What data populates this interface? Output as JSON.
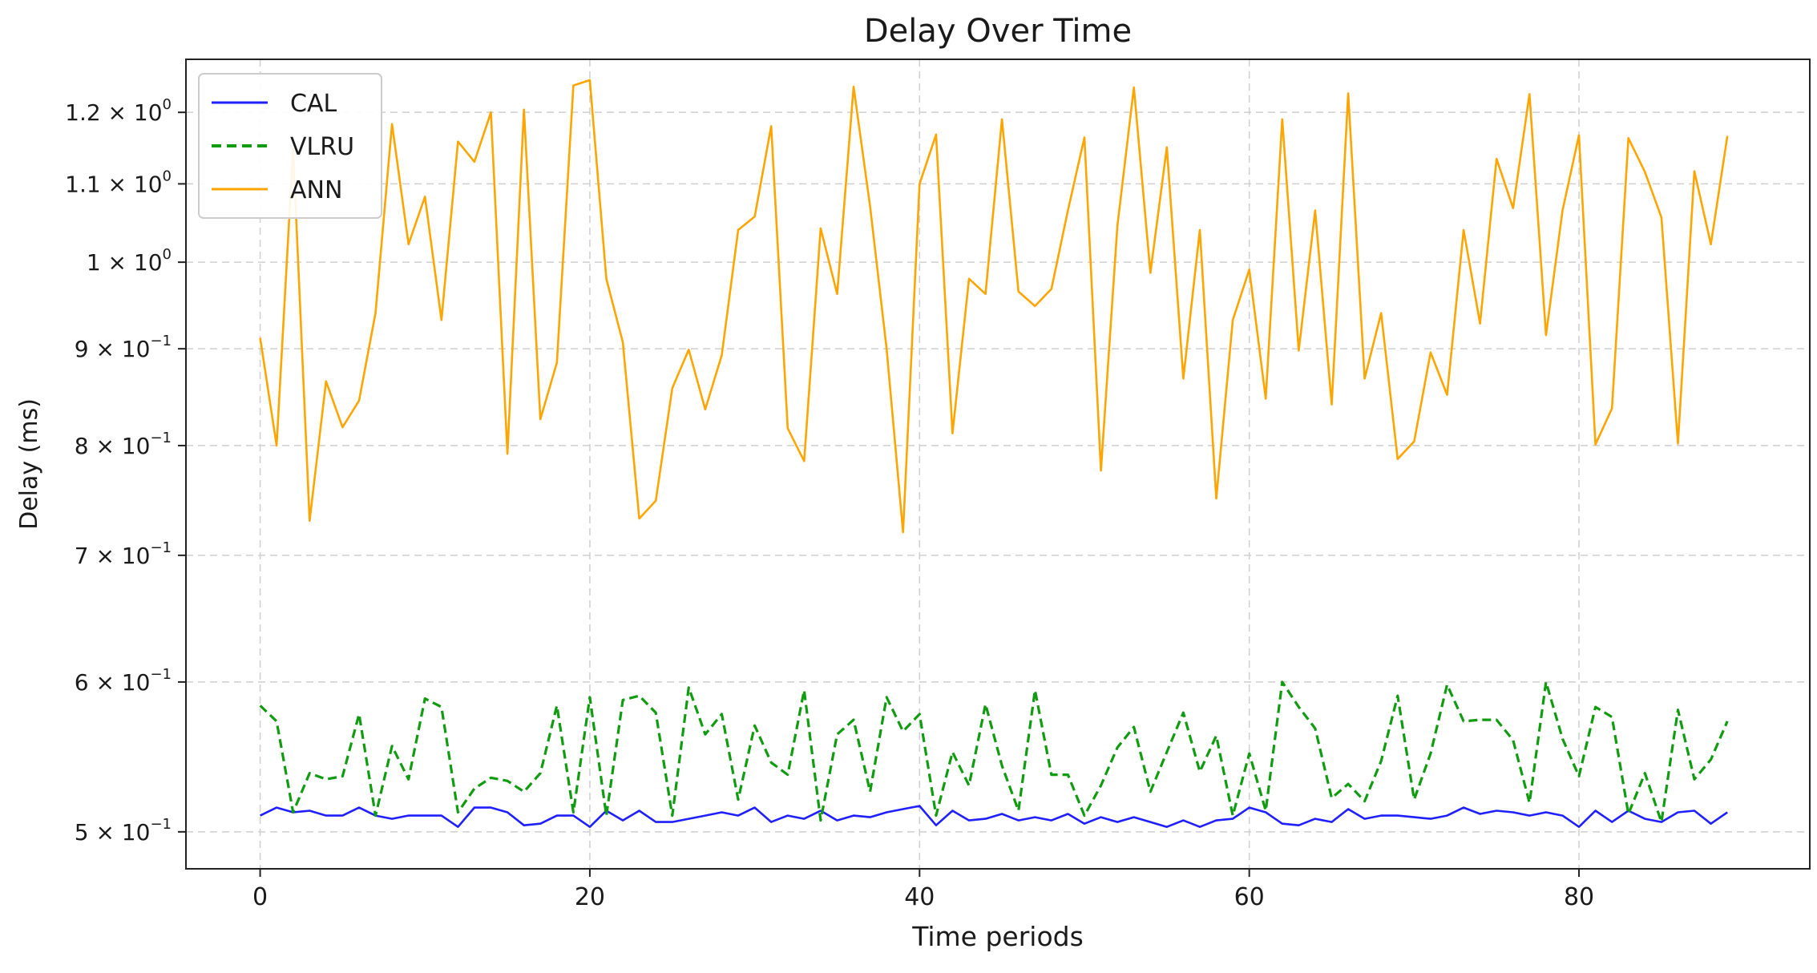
{
  "chart_data": {
    "type": "line",
    "title": "Delay Over Time",
    "xlabel": "Time periods",
    "ylabel": "Delay (ms)",
    "y_scale": "log",
    "xlim": [
      -4.5,
      94
    ],
    "ylim": [
      0.478,
      1.28
    ],
    "grid": true,
    "legend_position": "upper-left",
    "x_ticks": [
      0,
      20,
      40,
      60,
      80
    ],
    "x_tick_labels": [
      "0",
      "20",
      "40",
      "60",
      "80"
    ],
    "y_ticks": [
      {
        "value": 0.5,
        "mant": "5 × 10",
        "exp": "−1"
      },
      {
        "value": 0.6,
        "mant": "6 × 10",
        "exp": "−1"
      },
      {
        "value": 0.7,
        "mant": "7 × 10",
        "exp": "−1"
      },
      {
        "value": 0.8,
        "mant": "8 × 10",
        "exp": "−1"
      },
      {
        "value": 0.9,
        "mant": "9 × 10",
        "exp": "−1"
      },
      {
        "value": 1.0,
        "mant": "1 × 10",
        "exp": "0"
      },
      {
        "value": 1.1,
        "mant": "1.1 × 10",
        "exp": "0"
      },
      {
        "value": 1.2,
        "mant": "1.2 × 10",
        "exp": "0"
      }
    ],
    "x": [
      0,
      1,
      2,
      3,
      4,
      5,
      6,
      7,
      8,
      9,
      10,
      11,
      12,
      13,
      14,
      15,
      16,
      17,
      18,
      19,
      20,
      21,
      22,
      23,
      24,
      25,
      26,
      27,
      28,
      29,
      30,
      31,
      32,
      33,
      34,
      35,
      36,
      37,
      38,
      39,
      40,
      41,
      42,
      43,
      44,
      45,
      46,
      47,
      48,
      49,
      50,
      51,
      52,
      53,
      54,
      55,
      56,
      57,
      58,
      59,
      60,
      61,
      62,
      63,
      64,
      65,
      66,
      67,
      68,
      69,
      70,
      71,
      72,
      73,
      74,
      75,
      76,
      77,
      78,
      79,
      80,
      81,
      82,
      83,
      84,
      85,
      86,
      87,
      88,
      89
    ],
    "series": [
      {
        "name": "CAL",
        "color": "#1f1fff",
        "style": "solid",
        "values": [
          0.51,
          0.515,
          0.512,
          0.513,
          0.51,
          0.51,
          0.515,
          0.51,
          0.508,
          0.51,
          0.51,
          0.51,
          0.503,
          0.515,
          0.515,
          0.512,
          0.504,
          0.505,
          0.51,
          0.51,
          0.503,
          0.513,
          0.507,
          0.513,
          0.506,
          0.506,
          0.508,
          0.51,
          0.512,
          0.51,
          0.515,
          0.506,
          0.51,
          0.508,
          0.513,
          0.507,
          0.51,
          0.509,
          0.512,
          0.514,
          0.516,
          0.504,
          0.513,
          0.507,
          0.508,
          0.511,
          0.507,
          0.509,
          0.507,
          0.511,
          0.505,
          0.509,
          0.506,
          0.509,
          0.506,
          0.503,
          0.507,
          0.503,
          0.507,
          0.508,
          0.515,
          0.512,
          0.505,
          0.504,
          0.508,
          0.506,
          0.514,
          0.508,
          0.51,
          0.51,
          0.509,
          0.508,
          0.51,
          0.515,
          0.511,
          0.513,
          0.512,
          0.51,
          0.512,
          0.51,
          0.503,
          0.513,
          0.506,
          0.513,
          0.508,
          0.506,
          0.512,
          0.513,
          0.505,
          0.512
        ]
      },
      {
        "name": "VLRU",
        "color": "#119b11",
        "style": "dashed",
        "values": [
          0.583,
          0.572,
          0.512,
          0.537,
          0.533,
          0.535,
          0.577,
          0.51,
          0.555,
          0.533,
          0.588,
          0.582,
          0.512,
          0.527,
          0.534,
          0.532,
          0.525,
          0.537,
          0.583,
          0.512,
          0.589,
          0.51,
          0.587,
          0.59,
          0.578,
          0.51,
          0.596,
          0.563,
          0.577,
          0.52,
          0.569,
          0.544,
          0.536,
          0.594,
          0.507,
          0.563,
          0.573,
          0.525,
          0.589,
          0.565,
          0.577,
          0.51,
          0.551,
          0.529,
          0.584,
          0.542,
          0.513,
          0.594,
          0.536,
          0.536,
          0.51,
          0.529,
          0.554,
          0.568,
          0.525,
          0.551,
          0.578,
          0.538,
          0.562,
          0.51,
          0.55,
          0.513,
          0.6,
          0.582,
          0.567,
          0.521,
          0.53,
          0.519,
          0.545,
          0.59,
          0.52,
          0.55,
          0.598,
          0.572,
          0.573,
          0.573,
          0.559,
          0.518,
          0.6,
          0.56,
          0.535,
          0.582,
          0.575,
          0.511,
          0.537,
          0.506,
          0.58,
          0.533,
          0.546,
          0.572
        ]
      },
      {
        "name": "ANN",
        "color": "#ffa500",
        "style": "solid",
        "values": [
          0.912,
          0.8,
          1.148,
          0.73,
          0.865,
          0.818,
          0.845,
          0.94,
          1.183,
          1.022,
          1.083,
          0.932,
          1.158,
          1.13,
          1.2,
          0.792,
          1.204,
          0.826,
          0.885,
          1.24,
          1.248,
          0.98,
          0.907,
          0.732,
          0.748,
          0.858,
          0.899,
          0.836,
          0.893,
          1.04,
          1.057,
          1.18,
          0.817,
          0.785,
          1.042,
          0.962,
          1.238,
          1.07,
          0.9,
          0.72,
          1.1,
          1.168,
          0.812,
          0.98,
          0.962,
          1.19,
          0.965,
          0.948,
          0.968,
          1.065,
          1.164,
          0.776,
          1.045,
          1.237,
          0.987,
          1.15,
          0.868,
          1.04,
          0.75,
          0.932,
          0.991,
          0.847,
          1.19,
          0.898,
          1.065,
          0.841,
          1.228,
          0.868,
          0.94,
          0.787,
          0.804,
          0.896,
          0.851,
          1.04,
          0.928,
          1.134,
          1.068,
          1.227,
          0.915,
          1.065,
          1.167,
          0.801,
          0.837,
          1.163,
          1.116,
          1.056,
          0.802,
          1.117,
          1.022,
          1.166
        ]
      }
    ]
  }
}
